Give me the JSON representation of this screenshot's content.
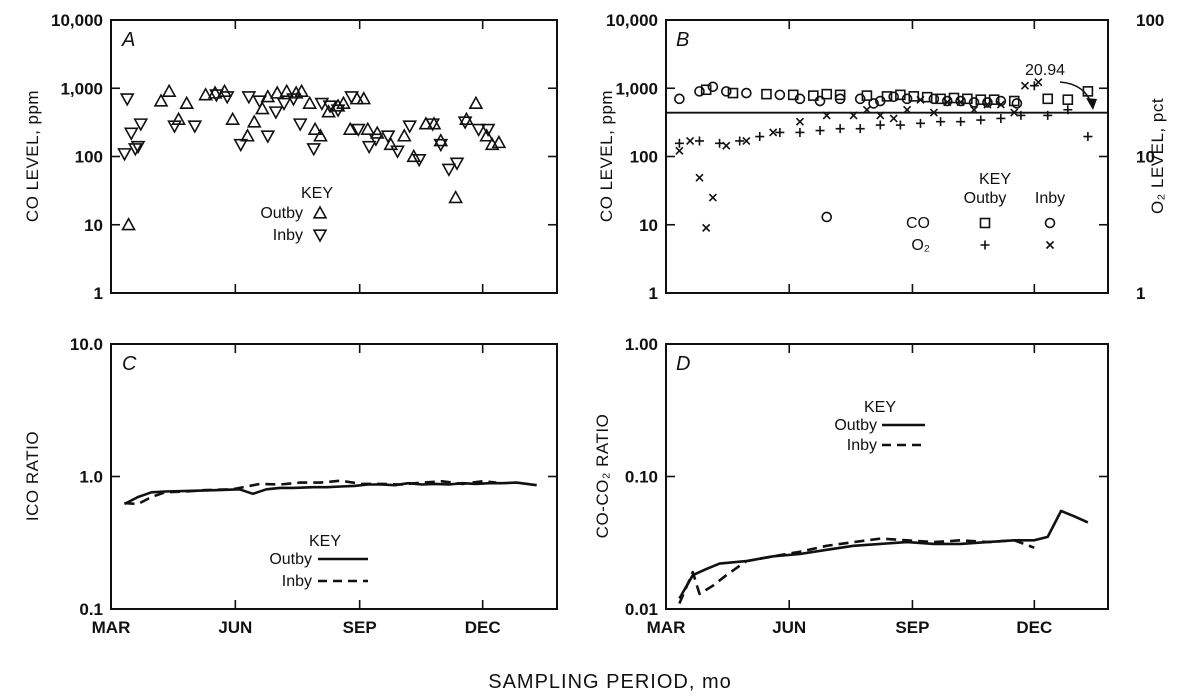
{
  "figure": {
    "bottom_label": "SAMPLING PERIOD, mo"
  },
  "chart_data": [
    {
      "panel": "A",
      "type": "scatter",
      "ylabel": "CO LEVEL, ppm",
      "yscale": "log",
      "ylim": [
        1,
        10000
      ],
      "yticks": [
        1,
        10,
        100,
        1000,
        10000
      ],
      "ytick_labels": [
        "1",
        "10",
        "100",
        "1,000",
        "10,000"
      ],
      "xlim": [
        0,
        330
      ],
      "key": {
        "title": "KEY",
        "entries": [
          "Outby",
          "Inby"
        ]
      },
      "series": [
        {
          "name": "Outby",
          "marker": "triangle-up",
          "x": [
            13,
            37,
            43,
            50,
            56,
            70,
            77,
            84,
            90,
            101,
            106,
            112,
            116,
            123,
            130,
            137,
            141,
            147,
            151,
            155,
            161,
            168,
            172,
            177,
            182,
            187,
            190,
            197,
            207,
            217,
            224,
            233,
            239,
            244,
            255,
            263,
            270,
            278,
            282,
            287
          ],
          "y": [
            10,
            650,
            900,
            350,
            600,
            800,
            850,
            900,
            350,
            200,
            320,
            500,
            750,
            850,
            900,
            850,
            900,
            600,
            250,
            200,
            450,
            550,
            600,
            250,
            700,
            700,
            250,
            220,
            150,
            200,
            100,
            300,
            300,
            170,
            25,
            350,
            600,
            200,
            150,
            160
          ]
        },
        {
          "name": "Inby",
          "marker": "triangle-down",
          "x": [
            10,
            12,
            15,
            18,
            20,
            22,
            47,
            62,
            78,
            86,
            96,
            102,
            110,
            116,
            122,
            128,
            135,
            140,
            150,
            156,
            162,
            168,
            178,
            183,
            191,
            196,
            205,
            212,
            221,
            228,
            238,
            244,
            250,
            256,
            262,
            272,
            279
          ],
          "y": [
            110,
            700,
            220,
            130,
            140,
            300,
            280,
            280,
            800,
            750,
            150,
            750,
            650,
            200,
            450,
            600,
            700,
            300,
            130,
            600,
            550,
            480,
            750,
            250,
            140,
            180,
            200,
            120,
            280,
            90,
            300,
            150,
            65,
            80,
            320,
            250,
            250
          ]
        }
      ]
    },
    {
      "panel": "B",
      "type": "scatter",
      "ylabel": "CO LEVEL, ppm",
      "ylabel_right": "O₂ LEVEL, pct",
      "yscale": "log",
      "ylim": [
        1,
        10000
      ],
      "yticks": [
        1,
        10,
        100,
        1000,
        10000
      ],
      "ytick_labels": [
        "1",
        "10",
        "100",
        "1,000",
        "10,000"
      ],
      "y2lim": [
        1,
        100
      ],
      "y2ticks": [
        1,
        10,
        100
      ],
      "y2tick_labels": [
        "1",
        "10",
        "100"
      ],
      "xlim": [
        0,
        330
      ],
      "reference_line": {
        "y2": 20.94,
        "label": "20.94"
      },
      "key": {
        "title": "KEY",
        "columns": [
          "Outby",
          "Inby"
        ],
        "rows": [
          "CO",
          "O₂"
        ]
      },
      "series": [
        {
          "name": "CO Outby",
          "marker": "square",
          "axis": "left",
          "x": [
            30,
            50,
            75,
            95,
            110,
            120,
            130,
            150,
            165,
            175,
            185,
            195,
            205,
            215,
            225,
            235,
            245,
            260,
            285,
            300,
            315
          ],
          "y": [
            950,
            850,
            820,
            800,
            780,
            820,
            800,
            780,
            760,
            800,
            760,
            740,
            700,
            720,
            700,
            680,
            680,
            650,
            700,
            680,
            900
          ]
        },
        {
          "name": "CO Inby",
          "marker": "circle",
          "axis": "left",
          "x": [
            10,
            25,
            35,
            45,
            60,
            85,
            100,
            115,
            130,
            145,
            155,
            160,
            170,
            180,
            200,
            210,
            220,
            230,
            240,
            250,
            262,
            120
          ],
          "y": [
            700,
            900,
            1050,
            900,
            850,
            800,
            700,
            650,
            700,
            700,
            600,
            650,
            750,
            700,
            700,
            650,
            650,
            620,
            620,
            650,
            600,
            13
          ]
        },
        {
          "name": "O₂ Outby",
          "marker": "plus",
          "axis": "right",
          "x": [
            10,
            25,
            40,
            55,
            70,
            85,
            100,
            115,
            130,
            145,
            160,
            175,
            190,
            205,
            220,
            235,
            250,
            265,
            275,
            285,
            300,
            315
          ],
          "y": [
            12.5,
            13,
            12.5,
            13,
            14,
            15,
            15,
            15.5,
            16,
            16,
            17,
            17,
            17.5,
            18,
            18,
            18.5,
            19,
            20,
            33,
            20,
            22,
            14
          ]
        },
        {
          "name": "O₂ Inby",
          "marker": "x",
          "axis": "right",
          "x": [
            10,
            18,
            25,
            30,
            35,
            45,
            60,
            80,
            100,
            120,
            140,
            150,
            160,
            170,
            180,
            190,
            200,
            210,
            220,
            230,
            240,
            250,
            260,
            268,
            278
          ],
          "y": [
            11,
            13,
            7,
            3,
            5,
            12,
            13,
            15,
            18,
            20,
            20,
            22,
            20,
            19,
            22,
            26,
            21,
            25,
            25,
            22,
            24,
            24,
            21,
            33,
            35
          ]
        }
      ]
    },
    {
      "panel": "C",
      "type": "line",
      "ylabel": "ICO RATIO",
      "yscale": "log",
      "ylim": [
        0.1,
        10
      ],
      "yticks": [
        0.1,
        1,
        10
      ],
      "ytick_labels": [
        "0.1",
        "1.0",
        "10.0"
      ],
      "xlim": [
        0,
        330
      ],
      "key": {
        "title": "KEY",
        "entries": [
          "Outby",
          "Inby"
        ]
      },
      "series": [
        {
          "name": "Outby",
          "style": "solid",
          "x": [
            10,
            20,
            30,
            40,
            60,
            80,
            95,
            105,
            115,
            125,
            135,
            150,
            160,
            170,
            180,
            190,
            200,
            210,
            220,
            230,
            240,
            250,
            260,
            270,
            280,
            290,
            300,
            315
          ],
          "y": [
            0.62,
            0.7,
            0.76,
            0.77,
            0.78,
            0.79,
            0.8,
            0.74,
            0.8,
            0.82,
            0.82,
            0.83,
            0.83,
            0.84,
            0.85,
            0.87,
            0.87,
            0.86,
            0.89,
            0.87,
            0.88,
            0.87,
            0.89,
            0.88,
            0.89,
            0.89,
            0.9,
            0.86
          ]
        },
        {
          "name": "Inby",
          "style": "dashed",
          "x": [
            10,
            20,
            30,
            40,
            55,
            70,
            90,
            110,
            125,
            140,
            155,
            170,
            185,
            200,
            215,
            230,
            245,
            260,
            275,
            285
          ],
          "y": [
            0.63,
            0.62,
            0.7,
            0.76,
            0.77,
            0.79,
            0.8,
            0.88,
            0.87,
            0.9,
            0.9,
            0.93,
            0.88,
            0.88,
            0.87,
            0.9,
            0.92,
            0.88,
            0.92,
            0.9
          ]
        }
      ]
    },
    {
      "panel": "D",
      "type": "line",
      "ylabel": "CO-CO₂ RATIO",
      "yscale": "log",
      "ylim": [
        0.01,
        1
      ],
      "yticks": [
        0.01,
        0.1,
        1
      ],
      "ytick_labels": [
        "0.01",
        "0.10",
        "1.00"
      ],
      "xlim": [
        0,
        330
      ],
      "key": {
        "title": "KEY",
        "entries": [
          "Outby",
          "Inby"
        ]
      },
      "series": [
        {
          "name": "Outby",
          "style": "solid",
          "x": [
            10,
            20,
            30,
            40,
            60,
            80,
            100,
            120,
            140,
            160,
            180,
            200,
            220,
            240,
            260,
            275,
            285,
            295,
            305,
            315
          ],
          "y": [
            0.012,
            0.018,
            0.02,
            0.022,
            0.023,
            0.025,
            0.026,
            0.028,
            0.03,
            0.031,
            0.032,
            0.031,
            0.031,
            0.032,
            0.033,
            0.033,
            0.035,
            0.055,
            0.05,
            0.045
          ]
        },
        {
          "name": "Inby",
          "style": "dashed",
          "x": [
            10,
            20,
            25,
            35,
            45,
            60,
            80,
            100,
            120,
            140,
            160,
            180,
            200,
            220,
            240,
            260,
            275
          ],
          "y": [
            0.011,
            0.019,
            0.013,
            0.015,
            0.018,
            0.023,
            0.025,
            0.027,
            0.03,
            0.032,
            0.034,
            0.033,
            0.032,
            0.033,
            0.032,
            0.033,
            0.029
          ]
        }
      ]
    }
  ],
  "x_axis": {
    "months": [
      "MAR",
      "JUN",
      "SEP",
      "DEC"
    ],
    "month_positions": [
      0,
      92,
      184,
      275
    ]
  }
}
